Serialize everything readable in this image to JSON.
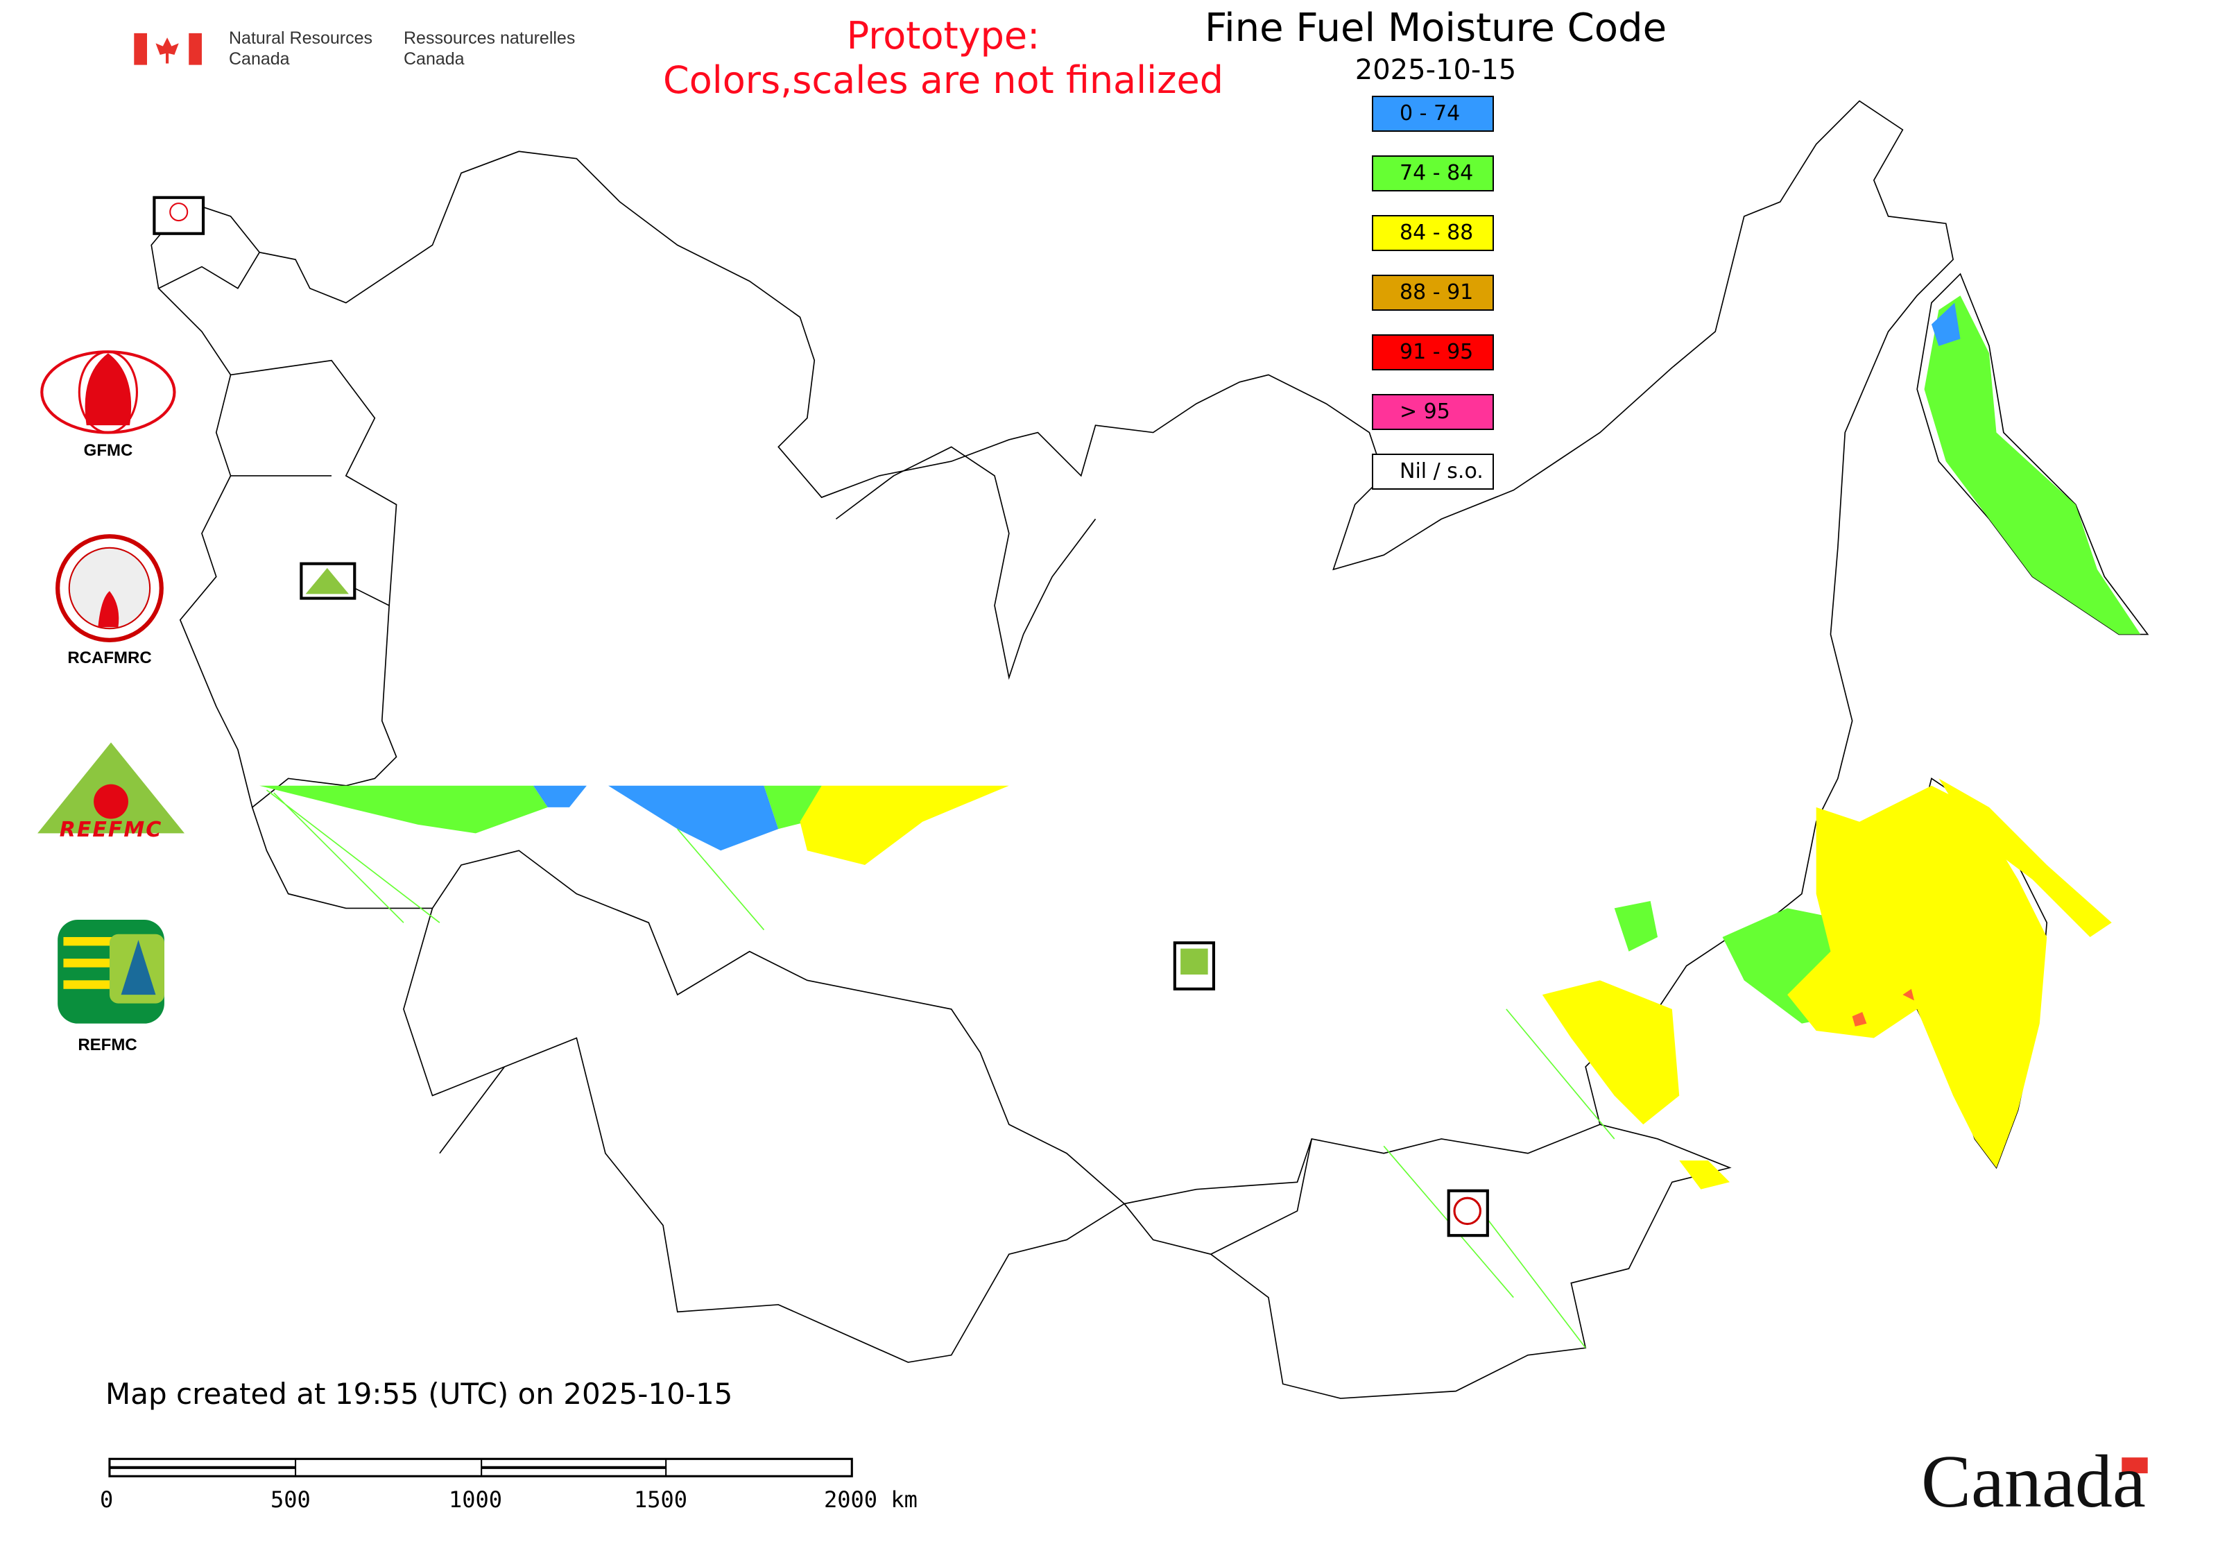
{
  "header": {
    "agency_en": [
      "Natural Resources",
      "Canada"
    ],
    "agency_fr": [
      "Ressources naturelles",
      "Canada"
    ],
    "prototype_notice": [
      "Prototype:",
      "Colors,scales are not finalized"
    ],
    "title": "Fine Fuel Moisture Code",
    "date": "2025-10-15"
  },
  "legend": [
    {
      "label": "0 - 74",
      "color": "#3399ff"
    },
    {
      "label": "74 - 84",
      "color": "#66ff33"
    },
    {
      "label": "84 - 88",
      "color": "#ffff00"
    },
    {
      "label": "88 - 91",
      "color": "#dda000"
    },
    {
      "label": "91 - 95",
      "color": "#ff0000"
    },
    {
      "label": "> 95",
      "color": "#ff3399"
    },
    {
      "label": "Nil / s.o.",
      "color": "#ffffff"
    }
  ],
  "logos": [
    {
      "label": "GFMC"
    },
    {
      "label": "RCAFMRC"
    },
    {
      "label": "REEFMC"
    },
    {
      "label": "REFMC"
    }
  ],
  "footer": {
    "created": "Map created at 19:55 (UTC) on 2025-10-15",
    "scale_labels": [
      "0",
      "500",
      "1000",
      "1500",
      "2000 km"
    ],
    "wordmark": "Canada"
  }
}
